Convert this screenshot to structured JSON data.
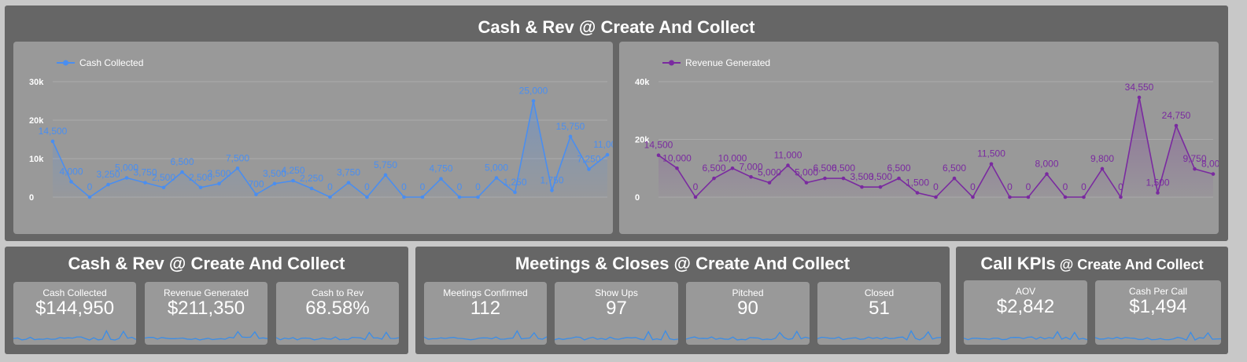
{
  "top_panel": {
    "title": "Cash & Rev @ Create And Collect"
  },
  "colors": {
    "cash": "#4a8ef0",
    "revenue": "#7a2aa0",
    "panel": "#666666",
    "card": "#999999",
    "spark": "#3a8de8"
  },
  "chart_data": [
    {
      "type": "line",
      "legend": "Cash Collected",
      "legend_position": "top-left",
      "ylim": [
        0,
        30000
      ],
      "yticks": [
        0,
        10000,
        20000,
        30000
      ],
      "ytick_labels": [
        "0",
        "10k",
        "20k",
        "30k"
      ],
      "grid": true,
      "series": [
        {
          "name": "Cash Collected",
          "values": [
            14500,
            4000,
            0,
            3250,
            5000,
            3750,
            2500,
            6500,
            2500,
            3500,
            7500,
            700,
            3500,
            4250,
            2250,
            0,
            3750,
            0,
            5750,
            0,
            0,
            4750,
            0,
            0,
            5000,
            1250,
            25000,
            1750,
            15750,
            7250,
            11000
          ]
        }
      ],
      "data_labels": [
        "14,500",
        "4,000",
        "0",
        "3,250",
        "5,000",
        "3,750",
        "2,500",
        "6,500",
        "2,500",
        "3,500",
        "7,500",
        "700",
        "3,500",
        "4,250",
        "2,250",
        "0",
        "3,750",
        "0",
        "5,750",
        "0",
        "0",
        "4,750",
        "0",
        "0",
        "5,000",
        "1,250",
        "25,000",
        "1,750",
        "15,750",
        "7,250",
        "11,000"
      ]
    },
    {
      "type": "line",
      "legend": "Revenue Generated",
      "legend_position": "top-left",
      "ylim": [
        0,
        40000
      ],
      "yticks": [
        0,
        20000,
        40000
      ],
      "ytick_labels": [
        "0",
        "20k",
        "40k"
      ],
      "grid": true,
      "series": [
        {
          "name": "Revenue Generated",
          "values": [
            14500,
            10000,
            0,
            6500,
            10000,
            7000,
            5000,
            11000,
            5000,
            6500,
            6500,
            3500,
            3500,
            6500,
            1500,
            0,
            6500,
            0,
            11500,
            0,
            0,
            8000,
            0,
            0,
            9800,
            0,
            34550,
            1500,
            24750,
            9750,
            8000
          ]
        }
      ],
      "data_labels": [
        "14,500",
        "10,000",
        "0",
        "6,500",
        "10,000",
        "7,000",
        "5,000",
        "11,000",
        "5,000",
        "6,500",
        "6,500",
        "3,500",
        "3,500",
        "6,500",
        "1,500",
        "0",
        "6,500",
        "0",
        "11,500",
        "0",
        "0",
        "8,000",
        "0",
        "0",
        "9,800",
        "0",
        "34,550",
        "1,500",
        "24,750",
        "9,750",
        "8,000"
      ]
    }
  ],
  "kpi_panels": [
    {
      "title_main": "Cash & Rev @ Create And Collect",
      "title_suffix": "",
      "cards": [
        {
          "label": "Cash Collected",
          "value": "$144,950"
        },
        {
          "label": "Revenue Generated",
          "value": "$211,350"
        },
        {
          "label": "Cash to Rev",
          "value": "68.58%"
        }
      ]
    },
    {
      "title_main": "Meetings & Closes @ Create And Collect",
      "title_suffix": "",
      "cards": [
        {
          "label": "Meetings Confirmed",
          "value": "112"
        },
        {
          "label": "Show Ups",
          "value": "97"
        },
        {
          "label": "Pitched",
          "value": "90"
        },
        {
          "label": "Closed",
          "value": "51"
        }
      ]
    },
    {
      "title_main": "Call KPIs",
      "title_suffix": " @ Create And Collect",
      "cards": [
        {
          "label": "AOV",
          "value": "$2,842"
        },
        {
          "label": "Cash Per Call",
          "value": "$1,494"
        }
      ]
    }
  ]
}
